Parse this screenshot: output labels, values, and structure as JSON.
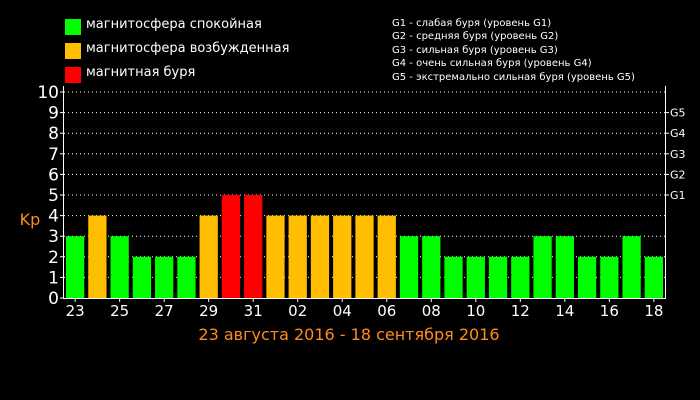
{
  "legend": [
    {
      "label": "магнитосфера спокойная",
      "color": "#00ff00"
    },
    {
      "label": "магнитосфера возбужденная",
      "color": "#ffbf00"
    },
    {
      "label": "магнитная буря",
      "color": "#ff0000"
    }
  ],
  "storm_levels": [
    "G1 - слабая буря (уровень G1)",
    "G2 - средняя буря (уровень G2)",
    "G3 - сильная буря (уровень G3)",
    "G4 - очень сильная буря (уровень G4)",
    "G5 - экстремально сильная буря (уровень G5)"
  ],
  "chart_data": {
    "type": "bar",
    "title": "",
    "xlabel": "23 августа 2016 - 18 сентября 2016",
    "ylabel": "Kp",
    "ylim": [
      0,
      10
    ],
    "y_ticks": [
      "0",
      "1",
      "2",
      "3",
      "4",
      "5",
      "6",
      "7",
      "8",
      "9",
      "10"
    ],
    "right_ticks": [
      {
        "y": 5,
        "label": "G1"
      },
      {
        "y": 6,
        "label": "G2"
      },
      {
        "y": 7,
        "label": "G3"
      },
      {
        "y": 8,
        "label": "G4"
      },
      {
        "y": 9,
        "label": "G5"
      }
    ],
    "x_tick_labels": [
      "23",
      "25",
      "27",
      "29",
      "31",
      "02",
      "04",
      "06",
      "08",
      "10",
      "12",
      "14",
      "16",
      "18"
    ],
    "categories": [
      "23",
      "24",
      "25",
      "26",
      "27",
      "28",
      "29",
      "30",
      "31",
      "01",
      "02",
      "03",
      "04",
      "05",
      "06",
      "07",
      "08",
      "09",
      "10",
      "11",
      "12",
      "13",
      "14",
      "15",
      "16",
      "17",
      "18"
    ],
    "values": [
      3,
      4,
      3,
      2,
      2,
      2,
      4,
      5,
      5,
      4,
      4,
      4,
      4,
      4,
      4,
      3,
      3,
      2,
      2,
      2,
      2,
      3,
      3,
      2,
      2,
      3,
      2
    ],
    "colors": {
      "calm": "#00ff00",
      "excited": "#ffbf00",
      "storm": "#ff0000"
    },
    "grid": true,
    "xlabel_color": "#ff8c1a",
    "ylabel_color": "#ff8c1a"
  }
}
